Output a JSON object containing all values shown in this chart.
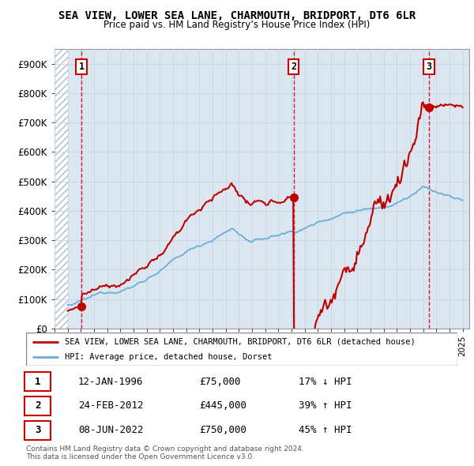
{
  "title": "SEA VIEW, LOWER SEA LANE, CHARMOUTH, BRIDPORT, DT6 6LR",
  "subtitle": "Price paid vs. HM Land Registry’s House Price Index (HPI)",
  "xlim": [
    1994.0,
    2025.5
  ],
  "ylim": [
    0,
    950000
  ],
  "yticks": [
    0,
    100000,
    200000,
    300000,
    400000,
    500000,
    600000,
    700000,
    800000,
    900000
  ],
  "ytick_labels": [
    "£0",
    "£100K",
    "£200K",
    "£300K",
    "£400K",
    "£500K",
    "£600K",
    "£700K",
    "£800K",
    "£900K"
  ],
  "sale_dates": [
    1996.04,
    2012.15,
    2022.44
  ],
  "sale_prices": [
    75000,
    445000,
    750000
  ],
  "sale_labels": [
    "1",
    "2",
    "3"
  ],
  "hpi_color": "#6baed6",
  "price_color": "#c00000",
  "vline_color": "#cc0000",
  "legend_entries": [
    "SEA VIEW, LOWER SEA LANE, CHARMOUTH, BRIDPORT, DT6 6LR (detached house)",
    "HPI: Average price, detached house, Dorset"
  ],
  "table_data": [
    [
      "1",
      "12-JAN-1996",
      "£75,000",
      "17% ↓ HPI"
    ],
    [
      "2",
      "24-FEB-2012",
      "£445,000",
      "39% ↑ HPI"
    ],
    [
      "3",
      "08-JUN-2022",
      "£750,000",
      "45% ↑ HPI"
    ]
  ],
  "footnote": "Contains HM Land Registry data © Crown copyright and database right 2024.\nThis data is licensed under the Open Government Licence v3.0.",
  "grid_color": "#c8d8e8",
  "plot_bg_color": "#dce6f1",
  "hatch_color": "#b0b8c8"
}
